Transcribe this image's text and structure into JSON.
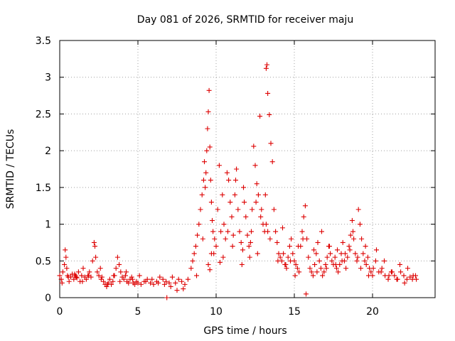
{
  "chart_data": {
    "type": "scatter",
    "title": "Day 081 of 2026, SRMTID for receiver maju",
    "xlabel": "GPS time / hours",
    "ylabel": "SRMTID / TECUs",
    "xlim": [
      0,
      24
    ],
    "ylim": [
      0,
      3.5
    ],
    "grid": true,
    "legend": "none",
    "marker": "+",
    "series_color": "#dd0000",
    "x_ticks": [
      {
        "value": 0,
        "label": "0"
      },
      {
        "value": 5,
        "label": "5"
      },
      {
        "value": 10,
        "label": "10"
      },
      {
        "value": 15,
        "label": "15"
      },
      {
        "value": 20,
        "label": "20"
      }
    ],
    "y_ticks": [
      {
        "value": 0,
        "label": "0"
      },
      {
        "value": 0.5,
        "label": "0.5"
      },
      {
        "value": 1,
        "label": "1"
      },
      {
        "value": 1.5,
        "label": "1.5"
      },
      {
        "value": 2,
        "label": "2"
      },
      {
        "value": 2.5,
        "label": "2.5"
      },
      {
        "value": 3,
        "label": "3"
      },
      {
        "value": 3.5,
        "label": "3.5"
      }
    ],
    "series": [
      {
        "name": "SRMTID",
        "x": [
          0.0,
          0.1,
          0.2,
          0.3,
          0.35,
          0.4,
          0.45,
          0.5,
          0.6,
          0.7,
          0.8,
          0.9,
          1.0,
          1.1,
          1.2,
          1.3,
          1.4,
          1.5,
          1.6,
          1.7,
          1.8,
          1.9,
          2.0,
          2.1,
          2.2,
          2.25,
          2.3,
          2.4,
          2.5,
          2.6,
          2.7,
          2.8,
          2.9,
          3.0,
          3.1,
          3.2,
          3.3,
          3.4,
          3.5,
          3.6,
          3.7,
          3.8,
          3.9,
          4.0,
          4.1,
          4.2,
          4.3,
          4.4,
          4.5,
          4.6,
          4.7,
          4.8,
          4.9,
          5.0,
          5.2,
          5.4,
          5.6,
          5.8,
          6.0,
          6.2,
          6.4,
          6.6,
          6.8,
          7.0,
          7.2,
          7.4,
          7.6,
          7.8,
          8.0,
          8.2,
          8.4,
          8.5,
          8.6,
          8.7,
          8.8,
          8.9,
          9.0,
          9.1,
          9.2,
          9.25,
          9.3,
          9.35,
          9.4,
          9.45,
          9.5,
          9.55,
          9.6,
          9.65,
          9.7,
          9.75,
          9.8,
          9.9,
          10.0,
          10.1,
          10.2,
          10.3,
          10.4,
          10.5,
          10.6,
          10.7,
          10.8,
          10.9,
          11.0,
          11.1,
          11.2,
          11.3,
          11.4,
          11.5,
          11.6,
          11.7,
          11.8,
          11.9,
          12.0,
          12.1,
          12.2,
          12.3,
          12.4,
          12.5,
          12.6,
          12.7,
          12.8,
          12.9,
          13.0,
          13.1,
          13.15,
          13.2,
          13.25,
          13.3,
          13.4,
          13.5,
          13.6,
          13.7,
          13.8,
          13.9,
          14.0,
          14.1,
          14.2,
          14.3,
          14.4,
          14.5,
          14.6,
          14.7,
          14.8,
          14.9,
          15.0,
          15.1,
          15.2,
          15.3,
          15.4,
          15.5,
          15.6,
          15.7,
          15.8,
          15.9,
          16.0,
          16.1,
          16.2,
          16.3,
          16.4,
          16.5,
          16.6,
          16.7,
          16.8,
          16.9,
          17.0,
          17.1,
          17.2,
          17.3,
          17.4,
          17.5,
          17.6,
          17.7,
          17.8,
          17.9,
          18.0,
          18.1,
          18.2,
          18.3,
          18.4,
          18.5,
          18.6,
          18.7,
          18.8,
          18.9,
          19.0,
          19.1,
          19.2,
          19.3,
          19.4,
          19.5,
          19.6,
          19.7,
          19.8,
          19.9,
          20.0,
          20.2,
          20.4,
          20.6,
          20.8,
          21.0,
          21.2,
          21.4,
          21.6,
          21.8,
          22.0,
          22.2,
          22.4,
          22.6,
          22.8,
          5.1,
          5.5,
          5.9,
          6.3,
          6.7,
          7.1,
          7.5,
          7.9,
          1.05,
          1.45,
          1.85,
          2.65,
          3.05,
          3.45,
          3.85,
          4.25,
          4.65,
          0.15,
          0.55,
          0.95,
          9.5,
          9.6,
          9.7,
          10.25,
          10.75,
          11.25,
          11.75,
          12.25,
          12.55,
          12.85,
          13.2,
          13.3,
          14.25,
          14.75,
          15.25,
          15.55,
          16.25,
          16.75,
          17.25,
          17.75,
          18.25,
          18.75,
          19.25,
          19.75,
          20.25,
          20.75,
          21.25,
          21.75,
          22.25,
          22.75,
          6.85,
          8.75,
          9.15,
          9.85,
          10.45,
          11.05,
          11.65,
          12.15,
          12.65,
          13.45,
          13.95,
          14.45,
          15.05,
          15.75,
          16.45,
          17.05,
          17.65,
          18.05,
          18.55,
          19.05,
          19.55,
          20.05,
          20.55,
          21.05,
          21.55,
          22.05,
          22.55
        ],
        "y": [
          0.3,
          0.25,
          0.35,
          0.45,
          0.65,
          0.55,
          0.4,
          0.3,
          0.22,
          0.28,
          0.32,
          0.25,
          0.3,
          0.27,
          0.35,
          0.22,
          0.3,
          0.4,
          0.28,
          0.25,
          0.3,
          0.35,
          0.28,
          0.5,
          0.75,
          0.7,
          0.55,
          0.35,
          0.3,
          0.4,
          0.28,
          0.22,
          0.18,
          0.15,
          0.2,
          0.25,
          0.18,
          0.22,
          0.3,
          0.4,
          0.55,
          0.45,
          0.35,
          0.28,
          0.25,
          0.3,
          0.22,
          0.2,
          0.25,
          0.28,
          0.2,
          0.18,
          0.22,
          0.2,
          0.18,
          0.22,
          0.25,
          0.2,
          0.18,
          0.22,
          0.28,
          0.25,
          0.22,
          0.2,
          0.28,
          0.2,
          0.25,
          0.22,
          0.18,
          0.25,
          0.4,
          0.5,
          0.6,
          0.7,
          0.85,
          1.0,
          1.2,
          1.4,
          1.6,
          1.85,
          1.5,
          1.7,
          2.0,
          2.3,
          2.53,
          2.82,
          2.05,
          1.6,
          1.3,
          1.05,
          0.9,
          0.8,
          0.7,
          1.2,
          1.8,
          0.9,
          1.4,
          1.0,
          0.8,
          1.7,
          1.6,
          1.3,
          1.1,
          0.85,
          1.4,
          1.75,
          1.2,
          0.9,
          0.75,
          0.65,
          1.3,
          1.1,
          0.85,
          0.7,
          0.75,
          1.2,
          2.06,
          1.8,
          1.55,
          1.4,
          2.47,
          1.2,
          1.0,
          0.9,
          1.4,
          3.12,
          3.17,
          2.78,
          2.49,
          2.1,
          1.85,
          1.2,
          0.9,
          0.75,
          0.6,
          0.55,
          0.5,
          0.6,
          0.45,
          0.4,
          0.55,
          0.7,
          0.8,
          0.6,
          0.5,
          0.45,
          0.4,
          0.35,
          0.7,
          0.9,
          1.1,
          1.25,
          0.8,
          0.55,
          0.4,
          0.35,
          0.3,
          0.45,
          0.6,
          0.75,
          0.5,
          0.4,
          0.3,
          0.35,
          0.45,
          0.55,
          0.7,
          0.6,
          0.5,
          0.45,
          0.55,
          0.4,
          0.35,
          0.45,
          0.6,
          0.75,
          0.5,
          0.4,
          0.55,
          0.7,
          0.85,
          1.05,
          0.8,
          0.6,
          0.5,
          1.2,
          1.0,
          0.8,
          0.6,
          0.5,
          0.45,
          0.55,
          0.4,
          0.35,
          0.3,
          0.5,
          0.35,
          0.4,
          0.3,
          0.25,
          0.35,
          0.3,
          0.25,
          0.35,
          0.3,
          0.25,
          0.28,
          0.3,
          0.25,
          0.3,
          0.22,
          0.25,
          0.2,
          0.18,
          0.15,
          0.1,
          0.12,
          0.28,
          0.22,
          0.3,
          0.25,
          0.18,
          0.3,
          0.22,
          0.35,
          0.25,
          0.2,
          0.28,
          0.32,
          0.45,
          0.38,
          0.6,
          0.48,
          0.9,
          1.6,
          1.5,
          0.9,
          1.3,
          1.1,
          1.0,
          0.9,
          0.95,
          0.5,
          0.7,
          0.8,
          0.65,
          0.9,
          0.7,
          0.65,
          0.6,
          0.9,
          0.4,
          0.3,
          0.65,
          0.5,
          0.35,
          0.45,
          0.4,
          0.3,
          0.0,
          0.3,
          0.8,
          0.6,
          0.55,
          0.7,
          0.45,
          0.55,
          0.6,
          0.8,
          0.5,
          0.45,
          0.3,
          0.05,
          0.35,
          0.4,
          0.45,
          0.5,
          0.65,
          0.55,
          0.7,
          0.4,
          0.35,
          0.3,
          0.25,
          0.2,
          0.25
        ]
      }
    ]
  }
}
